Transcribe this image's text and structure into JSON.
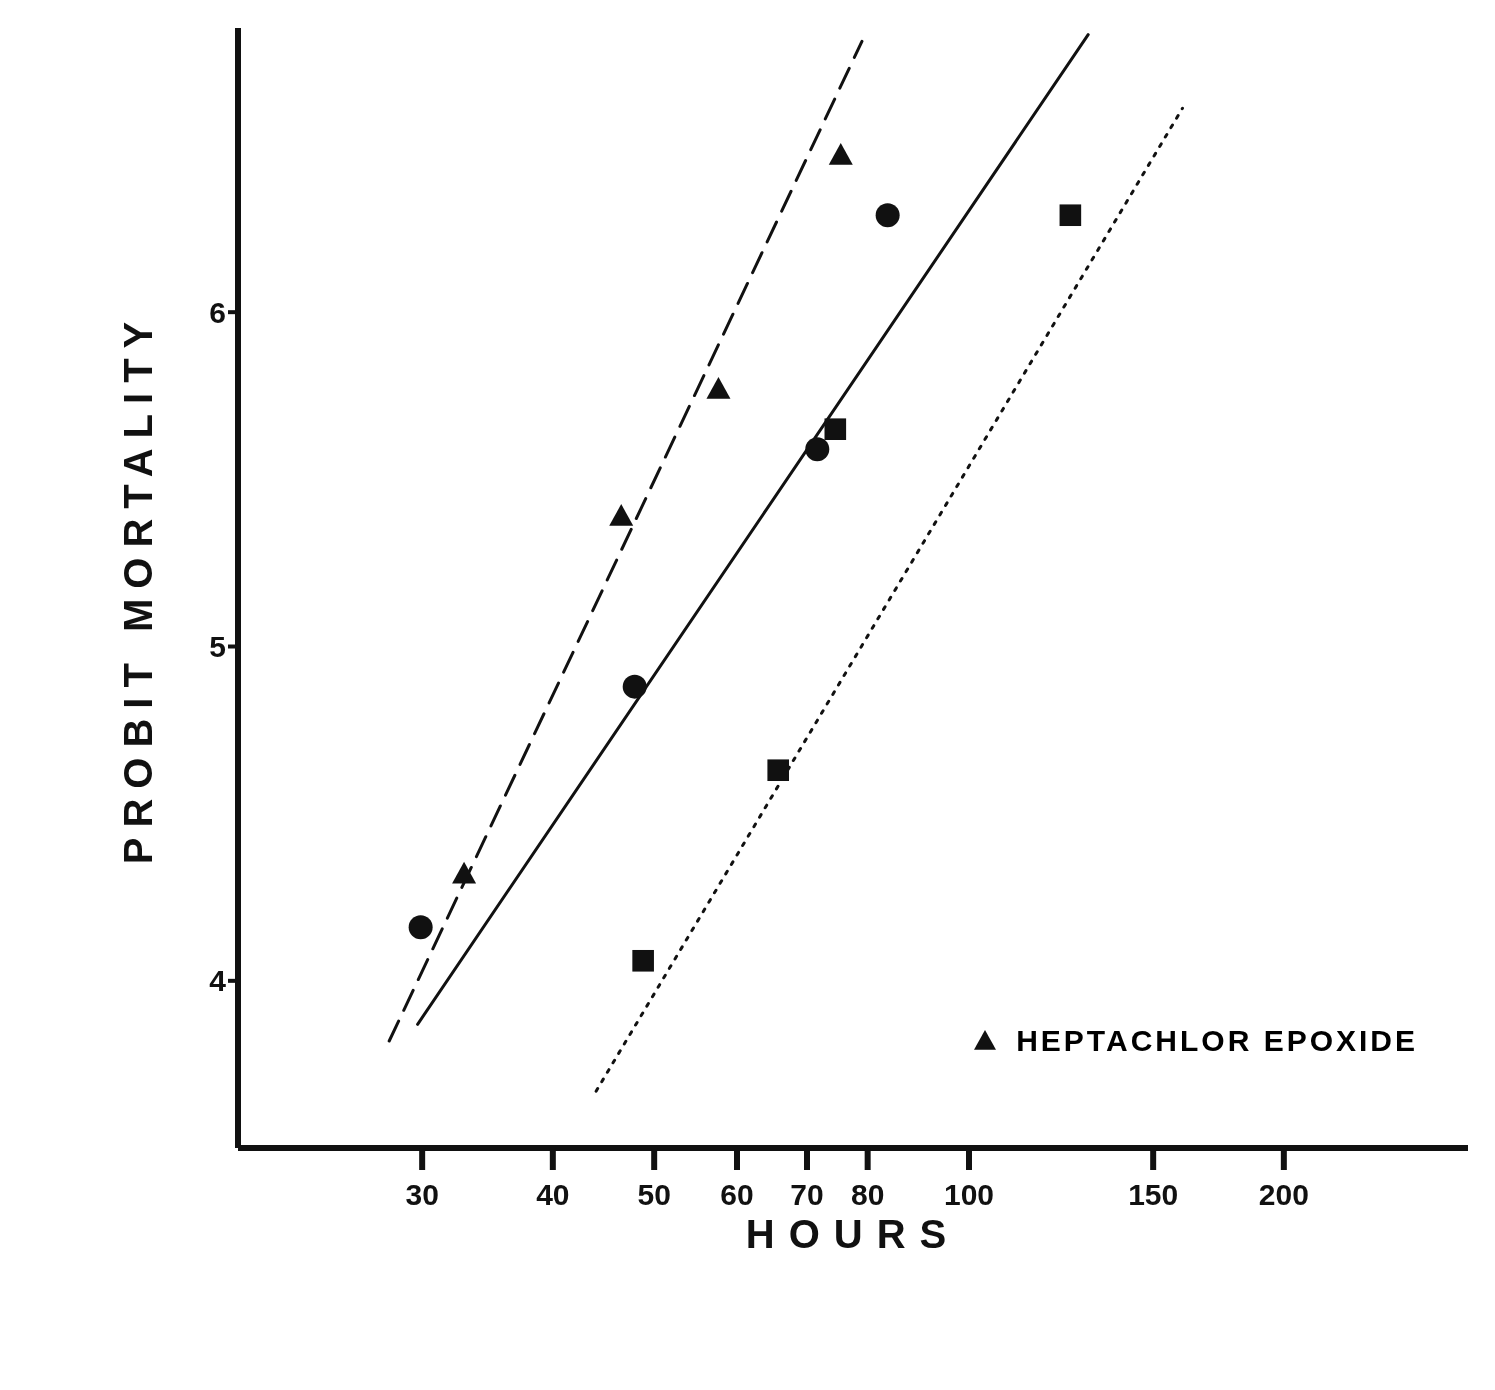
{
  "chart_data": {
    "type": "scatter",
    "xlabel": "HOURS",
    "ylabel": "PROBIT MORTALITY",
    "log": "x",
    "grid": false,
    "legend": "bottom right",
    "xlim": [
      20,
      300
    ],
    "xticks": [
      30,
      40,
      50,
      60,
      70,
      80,
      100,
      150,
      200
    ],
    "ylim": [
      3.5,
      6.85
    ],
    "yticks": [
      4,
      5,
      6
    ],
    "series": [
      {
        "type": "scatter",
        "marker": "circle",
        "color": "#111111",
        "x": [
          29.9,
          47.9,
          71.6,
          83.6
        ],
        "values": [
          4.16,
          4.88,
          5.59,
          6.29
        ]
      },
      {
        "type": "scatter",
        "name": "HEPTACHLOR EPOXIDE",
        "marker": "triangle",
        "color": "#111111",
        "x": [
          32.9,
          46.5,
          57.6,
          75.4
        ],
        "values": [
          4.32,
          5.39,
          5.77,
          6.47
        ]
      },
      {
        "type": "scatter",
        "marker": "square",
        "color": "#111111",
        "x": [
          48.8,
          65.7,
          74.5,
          125
        ],
        "values": [
          4.06,
          4.63,
          5.65,
          6.29
        ]
      },
      {
        "type": "line",
        "marker": "none",
        "line_style": "dashed",
        "color": "#111111",
        "x": [
          27.9,
          79
        ],
        "values": [
          3.82,
          6.81
        ]
      },
      {
        "type": "line",
        "marker": "none",
        "line_style": "solid",
        "color": "#111111",
        "x": [
          29.7,
          130
        ],
        "values": [
          3.87,
          6.83
        ]
      },
      {
        "type": "line",
        "marker": "none",
        "line_style": "dotted",
        "color": "#111111",
        "x": [
          44,
          160
        ],
        "values": [
          3.67,
          6.61
        ]
      }
    ]
  }
}
